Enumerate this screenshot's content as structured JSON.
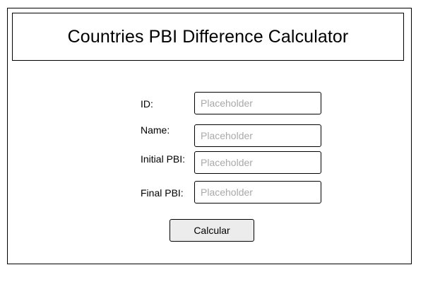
{
  "header": {
    "title": "Countries PBI Difference Calculator"
  },
  "form": {
    "fields": [
      {
        "label": "ID:",
        "placeholder": "Placeholder",
        "value": ""
      },
      {
        "label": "Name:",
        "placeholder": "Placeholder",
        "value": ""
      },
      {
        "label": "Initial PBI:",
        "placeholder": "Placeholder",
        "value": ""
      },
      {
        "label": "Final PBI:",
        "placeholder": "Placeholder",
        "value": ""
      }
    ],
    "submit_label": "Calcular"
  },
  "colors": {
    "border": "#000000",
    "placeholder": "#a9a9a9",
    "button_bg": "#ececec",
    "background": "#ffffff"
  }
}
